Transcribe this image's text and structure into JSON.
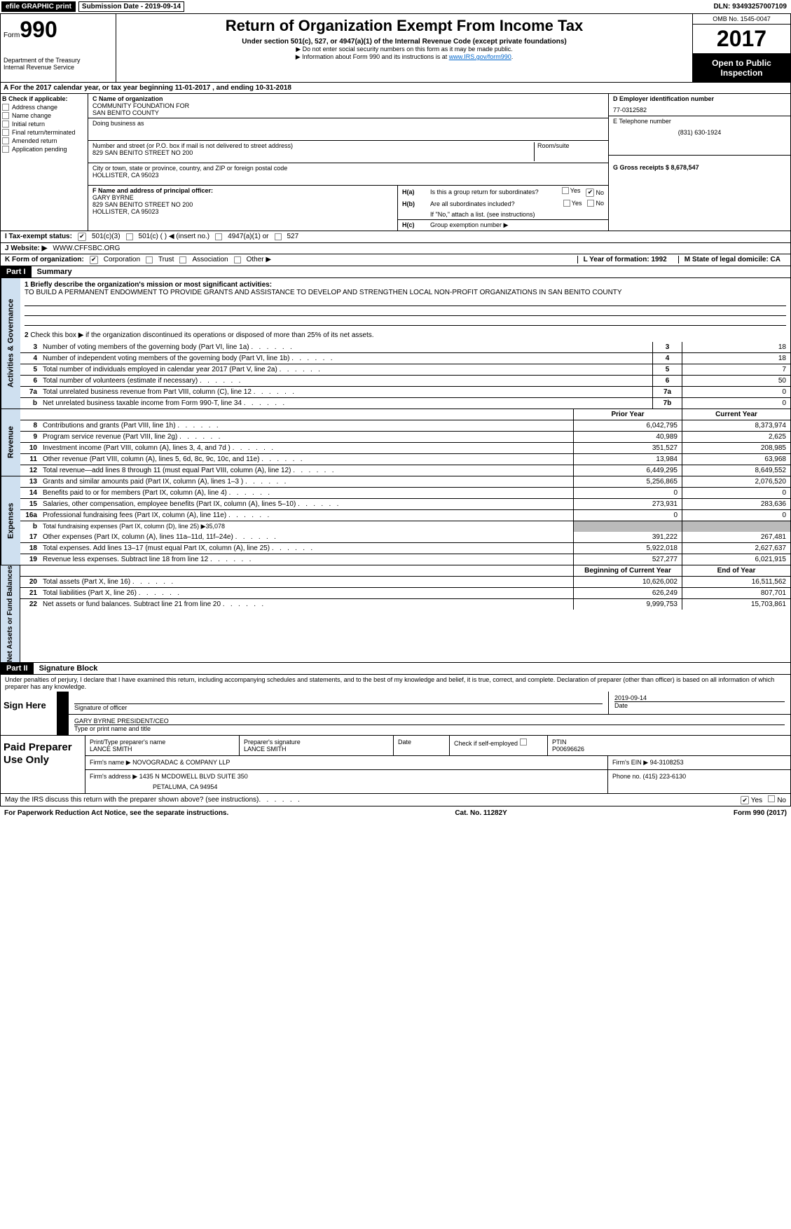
{
  "top": {
    "efile": "efile GRAPHIC print",
    "sub_date_label": "Submission Date - 2019-09-14",
    "dln": "DLN: 93493257007109"
  },
  "header": {
    "form_label": "Form",
    "form_num": "990",
    "dept1": "Department of the Treasury",
    "dept2": "Internal Revenue Service",
    "title": "Return of Organization Exempt From Income Tax",
    "sub": "Under section 501(c), 527, or 4947(a)(1) of the Internal Revenue Code (except private foundations)",
    "note1": "▶ Do not enter social security numbers on this form as it may be made public.",
    "note2_a": "▶ Information about Form 990 and its instructions is at ",
    "note2_link": "www.IRS.gov/form990",
    "note2_b": ".",
    "omb": "OMB No. 1545-0047",
    "year": "2017",
    "open_pub1": "Open to Public",
    "open_pub2": "Inspection"
  },
  "rowA": "A   For the 2017 calendar year, or tax year beginning 11-01-2017      , and ending 10-31-2018",
  "colB": {
    "hdr": "B Check if applicable:",
    "items": [
      "Address change",
      "Name change",
      "Initial return",
      "Final return/terminated",
      "Amended return",
      "Application pending"
    ]
  },
  "colC": {
    "name_lbl": "C Name of organization",
    "name1": "COMMUNITY FOUNDATION FOR",
    "name2": "SAN BENITO COUNTY",
    "dba_lbl": "Doing business as",
    "street_lbl": "Number and street (or P.O. box if mail is not delivered to street address)",
    "room_lbl": "Room/suite",
    "street": "829 SAN BENITO STREET NO 200",
    "city_lbl": "City or town, state or province, country, and ZIP or foreign postal code",
    "city": "HOLLISTER, CA  95023",
    "f_lbl": "F  Name and address of principal officer:",
    "f_name": "GARY BYRNE",
    "f_addr1": "829 SAN BENITO STREET NO 200",
    "f_addr2": "HOLLISTER, CA  95023"
  },
  "colD": {
    "ein_lbl": "D Employer identification number",
    "ein": "77-0312582",
    "tel_lbl": "E Telephone number",
    "tel": "(831) 630-1924",
    "gross_lbl": "G Gross receipts $ 8,678,547"
  },
  "colH": {
    "ha_l": "H(a)",
    "ha_t": "Is this a group return for subordinates?",
    "hb_l": "H(b)",
    "hb_t": "Are all subordinates included?",
    "hb_n": "If \"No,\" attach a list. (see instructions)",
    "hc_l": "H(c)",
    "hc_t": "Group exemption number ▶",
    "yes": "Yes",
    "no": "No"
  },
  "rowI": {
    "lbl": "I    Tax-exempt status:",
    "o1": "501(c)(3)",
    "o2": "501(c) ( ) ◀ (insert no.)",
    "o3": "4947(a)(1) or",
    "o4": "527"
  },
  "rowJ": {
    "lbl": "J   Website: ▶",
    "val": "WWW.CFFSBC.ORG"
  },
  "rowK": {
    "lbl": "K Form of organization:",
    "c": "Corporation",
    "t": "Trust",
    "a": "Association",
    "o": "Other ▶"
  },
  "rowL": {
    "l": "L Year of formation: 1992",
    "m": "M State of legal domicile: CA"
  },
  "part1": {
    "hdr": "Part I",
    "title": "Summary"
  },
  "summary": {
    "l1a": "1   Briefly describe the organization's mission or most significant activities:",
    "l1b": "TO BUILD A PERMANENT ENDOWMENT TO PROVIDE GRANTS AND ASSISTANCE TO DEVELOP AND STRENGTHEN LOCAL NON-PROFIT ORGANIZATIONS IN SAN BENITO COUNTY",
    "l2": "Check this box ▶      if the organization discontinued its operations or disposed of more than 25% of its net assets."
  },
  "gov_lines": [
    {
      "n": "3",
      "t": "Number of voting members of the governing body (Part VI, line 1a)",
      "b": "3",
      "v": "18"
    },
    {
      "n": "4",
      "t": "Number of independent voting members of the governing body (Part VI, line 1b)",
      "b": "4",
      "v": "18"
    },
    {
      "n": "5",
      "t": "Total number of individuals employed in calendar year 2017 (Part V, line 2a)",
      "b": "5",
      "v": "7"
    },
    {
      "n": "6",
      "t": "Total number of volunteers (estimate if necessary)",
      "b": "6",
      "v": "50"
    },
    {
      "n": "7a",
      "t": "Total unrelated business revenue from Part VIII, column (C), line 12",
      "b": "7a",
      "v": "0"
    },
    {
      "n": "b",
      "t": "Net unrelated business taxable income from Form 990-T, line 34",
      "b": "7b",
      "v": "0"
    }
  ],
  "col_hdrs": {
    "py": "Prior Year",
    "cy": "Current Year",
    "boy": "Beginning of Current Year",
    "eoy": "End of Year"
  },
  "rev_lines": [
    {
      "n": "8",
      "t": "Contributions and grants (Part VIII, line 1h)",
      "py": "6,042,795",
      "cy": "8,373,974"
    },
    {
      "n": "9",
      "t": "Program service revenue (Part VIII, line 2g)",
      "py": "40,989",
      "cy": "2,625"
    },
    {
      "n": "10",
      "t": "Investment income (Part VIII, column (A), lines 3, 4, and 7d )",
      "py": "351,527",
      "cy": "208,985"
    },
    {
      "n": "11",
      "t": "Other revenue (Part VIII, column (A), lines 5, 6d, 8c, 9c, 10c, and 11e)",
      "py": "13,984",
      "cy": "63,968"
    },
    {
      "n": "12",
      "t": "Total revenue—add lines 8 through 11 (must equal Part VIII, column (A), line 12)",
      "py": "6,449,295",
      "cy": "8,649,552"
    }
  ],
  "exp_lines": [
    {
      "n": "13",
      "t": "Grants and similar amounts paid (Part IX, column (A), lines 1–3 )",
      "py": "5,256,865",
      "cy": "2,076,520"
    },
    {
      "n": "14",
      "t": "Benefits paid to or for members (Part IX, column (A), line 4)",
      "py": "0",
      "cy": "0"
    },
    {
      "n": "15",
      "t": "Salaries, other compensation, employee benefits (Part IX, column (A), lines 5–10)",
      "py": "273,931",
      "cy": "283,636"
    },
    {
      "n": "16a",
      "t": "Professional fundraising fees (Part IX, column (A), line 11e)",
      "py": "0",
      "cy": "0"
    }
  ],
  "exp_16b": {
    "n": "b",
    "t": "Total fundraising expenses (Part IX, column (D), line 25) ▶35,078"
  },
  "exp_lines2": [
    {
      "n": "17",
      "t": "Other expenses (Part IX, column (A), lines 11a–11d, 11f–24e)",
      "py": "391,222",
      "cy": "267,481"
    },
    {
      "n": "18",
      "t": "Total expenses. Add lines 13–17 (must equal Part IX, column (A), line 25)",
      "py": "5,922,018",
      "cy": "2,627,637"
    },
    {
      "n": "19",
      "t": "Revenue less expenses. Subtract line 18 from line 12",
      "py": "527,277",
      "cy": "6,021,915"
    }
  ],
  "net_lines": [
    {
      "n": "20",
      "t": "Total assets (Part X, line 16)",
      "py": "10,626,002",
      "cy": "16,511,562"
    },
    {
      "n": "21",
      "t": "Total liabilities (Part X, line 26)",
      "py": "626,249",
      "cy": "807,701"
    },
    {
      "n": "22",
      "t": "Net assets or fund balances. Subtract line 21 from line 20",
      "py": "9,999,753",
      "cy": "15,703,861"
    }
  ],
  "vtabs": {
    "gov": "Activities & Governance",
    "rev": "Revenue",
    "exp": "Expenses",
    "net": "Net Assets or\nFund Balances"
  },
  "part2": {
    "hdr": "Part II",
    "title": "Signature Block"
  },
  "sig": {
    "decl": "Under penalties of perjury, I declare that I have examined this return, including accompanying schedules and statements, and to the best of my knowledge and belief, it is true, correct, and complete. Declaration of preparer (other than officer) is based on all information of which preparer has any knowledge.",
    "here": "Sign Here",
    "sig_of": "Signature of officer",
    "date_v": "2019-09-14",
    "date_l": "Date",
    "name": "GARY BYRNE  PRESIDENT/CEO",
    "name_l": "Type or print name and title"
  },
  "prep": {
    "title": "Paid Preparer Use Only",
    "r1c1l": "Print/Type preparer's name",
    "r1c1": "LANCE SMITH",
    "r1c2l": "Preparer's signature",
    "r1c2": "LANCE SMITH",
    "r1c3l": "Date",
    "r1c4l": "Check          if self-employed",
    "r1c5l": "PTIN",
    "r1c5": "P00696626",
    "r2l": "Firm's name      ▶",
    "r2": "NOVOGRADAC & COMPANY LLP",
    "r2b": "Firm's EIN ▶ 94-3108253",
    "r3l": "Firm's address ▶",
    "r3a": "1435 N MCDOWELL BLVD SUITE 350",
    "r3b": "PETALUMA, CA  94954",
    "r3c": "Phone no. (415) 223-6130"
  },
  "footer": {
    "discuss": "May the IRS discuss this return with the preparer shown above? (see instructions)",
    "yes": "Yes",
    "no": "No",
    "pra": "For Paperwork Reduction Act Notice, see the separate instructions.",
    "cat": "Cat. No. 11282Y",
    "form": "Form 990 (2017)"
  }
}
